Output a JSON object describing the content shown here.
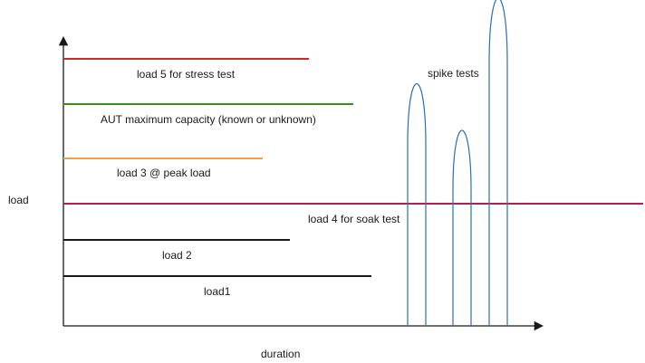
{
  "diagram": {
    "y_axis_label": "load",
    "x_axis_label": "duration",
    "spike_label": "spike tests",
    "lines": [
      {
        "id": "load5",
        "label": "load 5 for stress test",
        "color": "#cc2a2a"
      },
      {
        "id": "aut_max",
        "label": "AUT maximum capacity (known or unknown)",
        "color": "#3b8a1e"
      },
      {
        "id": "load3",
        "label": "load 3 @ peak load",
        "color": "#f0a040"
      },
      {
        "id": "load4",
        "label": "load 4 for soak test",
        "color": "#b81c52"
      },
      {
        "id": "load2",
        "label": "load 2",
        "color": "#1a1a1a"
      },
      {
        "id": "load1",
        "label": "load1",
        "color": "#1a1a1a"
      }
    ],
    "colors": {
      "axis": "#1a1a1a",
      "spike": "#2a6fb3"
    }
  }
}
